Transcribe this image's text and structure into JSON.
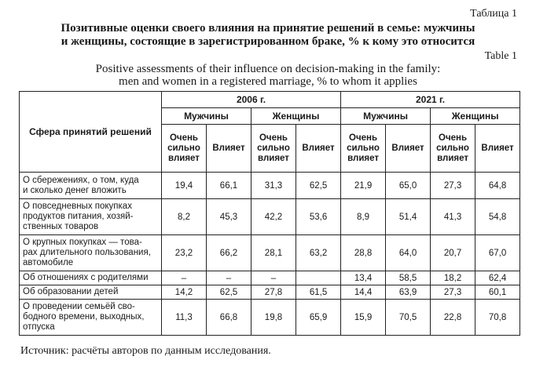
{
  "table_label_ru": "Таблица 1",
  "title_ru_line1": "Позитивные оценки своего влияния на принятие решений в семье: мужчины",
  "title_ru_line2": "и женщины, состоящие в зарегистрированном браке, % к кому это относится",
  "table_label_en": "Table 1",
  "title_en_line1": "Positive assessments of their influence on decision-making in the family:",
  "title_en_line2": "men and women in a registered marriage, % to whom it applies",
  "header": {
    "sphere": "Сфера принятий решений",
    "years": [
      "2006 г.",
      "2021 г."
    ],
    "men": "Мужчины",
    "women": "Женщины",
    "strong_line1": "Очень",
    "strong_line2": "сильно",
    "strong_line3": "влияет",
    "influences": "Влияет"
  },
  "rows": [
    {
      "l1": "О сбережениях, о том, куда",
      "l2": "и сколько денег вложить",
      "l3": "",
      "v": [
        "19,4",
        "66,1",
        "31,3",
        "62,5",
        "21,9",
        "65,0",
        "27,3",
        "64,8"
      ]
    },
    {
      "l1": "О повседневных покупках",
      "l2": "продуктов питания, хозяй-",
      "l3": "ственных товаров",
      "v": [
        "8,2",
        "45,3",
        "42,2",
        "53,6",
        "8,9",
        "51,4",
        "41,3",
        "54,8"
      ]
    },
    {
      "l1": "О крупных покупках — това-",
      "l2": "рах длительного пользования,",
      "l3": "автомобиле",
      "v": [
        "23,2",
        "66,2",
        "28,1",
        "63,2",
        "28,8",
        "64,0",
        "20,7",
        "67,0"
      ]
    },
    {
      "l1": "Об отношениях с родителями",
      "l2": "",
      "l3": "",
      "v": [
        "–",
        "–",
        "–",
        "",
        "13,4",
        "58,5",
        "18,2",
        "62,4"
      ]
    },
    {
      "l1": "Об образовании детей",
      "l2": "",
      "l3": "",
      "v": [
        "14,2",
        "62,5",
        "27,8",
        "61,5",
        "14,4",
        "63,9",
        "27,3",
        "60,1"
      ]
    },
    {
      "l1": "О проведении семьёй сво-",
      "l2": "бодного времени, выходных,",
      "l3": "отпуска",
      "v": [
        "11,3",
        "66,8",
        "19,8",
        "65,9",
        "15,9",
        "70,5",
        "22,8",
        "70,8"
      ]
    }
  ],
  "source": "Источник: расчёты авторов по данным исследования."
}
